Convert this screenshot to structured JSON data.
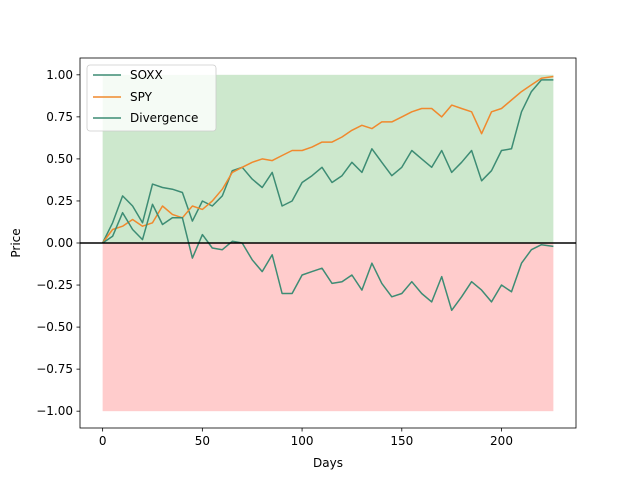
{
  "chart_data": {
    "type": "line",
    "title": "",
    "xlabel": "Days",
    "ylabel": "Price",
    "xlim": [
      -11.35,
      237.35
    ],
    "ylim": [
      -1.1,
      1.1
    ],
    "xticks": [
      0,
      50,
      100,
      150,
      200
    ],
    "yticks": [
      -1.0,
      -0.75,
      -0.5,
      -0.25,
      0.0,
      0.25,
      0.5,
      0.75,
      1.0
    ],
    "ytick_labels": [
      "−1.00",
      "−0.75",
      "−0.50",
      "−0.25",
      "0.00",
      "0.25",
      "0.50",
      "0.75",
      "1.00"
    ],
    "grid": false,
    "legend": "top-left",
    "reference_line": {
      "y": 0,
      "color": "#000000"
    },
    "bands": [
      {
        "from": 0,
        "to": 1,
        "x": [
          0,
          226
        ],
        "color": "#2ca02c",
        "opacity": 0.24
      },
      {
        "from": -1,
        "to": 0,
        "x": [
          0,
          226
        ],
        "color": "#ff0000",
        "opacity": 0.2
      }
    ],
    "series": [
      {
        "name": "SOXX",
        "color": "#3d8c74",
        "x": [
          0,
          5,
          10,
          15,
          20,
          25,
          30,
          35,
          40,
          45,
          50,
          55,
          60,
          65,
          70,
          75,
          80,
          85,
          90,
          95,
          100,
          105,
          110,
          115,
          120,
          125,
          130,
          135,
          140,
          145,
          150,
          155,
          160,
          165,
          170,
          175,
          180,
          185,
          190,
          195,
          200,
          205,
          210,
          215,
          220,
          226
        ],
        "values": [
          0.0,
          0.12,
          0.28,
          0.22,
          0.12,
          0.35,
          0.33,
          0.32,
          0.3,
          0.13,
          0.25,
          0.22,
          0.28,
          0.43,
          0.45,
          0.38,
          0.33,
          0.42,
          0.22,
          0.25,
          0.36,
          0.4,
          0.45,
          0.36,
          0.4,
          0.48,
          0.42,
          0.56,
          0.48,
          0.4,
          0.45,
          0.55,
          0.5,
          0.45,
          0.55,
          0.42,
          0.48,
          0.55,
          0.37,
          0.43,
          0.55,
          0.56,
          0.78,
          0.9,
          0.97,
          0.97
        ]
      },
      {
        "name": "SPY",
        "color": "#f0892d",
        "x": [
          0,
          5,
          10,
          15,
          20,
          25,
          30,
          35,
          40,
          45,
          50,
          55,
          60,
          65,
          70,
          75,
          80,
          85,
          90,
          95,
          100,
          105,
          110,
          115,
          120,
          125,
          130,
          135,
          140,
          145,
          150,
          155,
          160,
          165,
          170,
          175,
          180,
          185,
          190,
          195,
          200,
          205,
          210,
          215,
          220,
          226
        ],
        "values": [
          0.0,
          0.08,
          0.1,
          0.14,
          0.1,
          0.12,
          0.22,
          0.17,
          0.15,
          0.22,
          0.2,
          0.25,
          0.32,
          0.42,
          0.45,
          0.48,
          0.5,
          0.49,
          0.52,
          0.55,
          0.55,
          0.57,
          0.6,
          0.6,
          0.63,
          0.67,
          0.7,
          0.68,
          0.72,
          0.72,
          0.75,
          0.78,
          0.8,
          0.8,
          0.75,
          0.82,
          0.8,
          0.78,
          0.65,
          0.78,
          0.8,
          0.85,
          0.9,
          0.94,
          0.98,
          0.99
        ]
      },
      {
        "name": "Divergence",
        "color": "#3d8c74",
        "x": [
          0,
          5,
          10,
          15,
          20,
          25,
          30,
          35,
          40,
          45,
          50,
          55,
          60,
          65,
          70,
          75,
          80,
          85,
          90,
          95,
          100,
          105,
          110,
          115,
          120,
          125,
          130,
          135,
          140,
          145,
          150,
          155,
          160,
          165,
          170,
          175,
          180,
          185,
          190,
          195,
          200,
          205,
          210,
          215,
          220,
          226
        ],
        "values": [
          0.0,
          0.04,
          0.18,
          0.08,
          0.02,
          0.23,
          0.11,
          0.15,
          0.15,
          -0.09,
          0.05,
          -0.03,
          -0.04,
          0.01,
          0.0,
          -0.1,
          -0.17,
          -0.07,
          -0.3,
          -0.3,
          -0.19,
          -0.17,
          -0.15,
          -0.24,
          -0.23,
          -0.19,
          -0.28,
          -0.12,
          -0.24,
          -0.32,
          -0.3,
          -0.23,
          -0.3,
          -0.35,
          -0.2,
          -0.4,
          -0.32,
          -0.23,
          -0.28,
          -0.35,
          -0.25,
          -0.29,
          -0.12,
          -0.04,
          -0.01,
          -0.02
        ]
      }
    ]
  }
}
